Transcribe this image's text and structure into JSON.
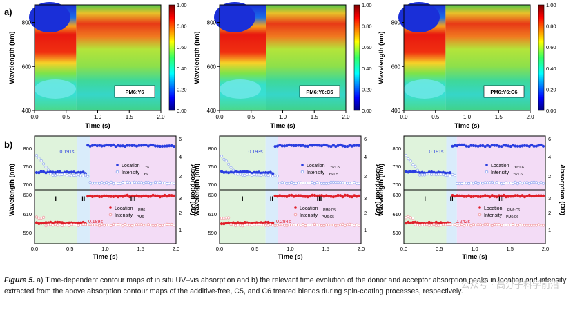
{
  "panel_labels": {
    "a": "a)",
    "b": "b)"
  },
  "colorbar": {
    "ticks": [
      "1.00",
      "0.80",
      "0.60",
      "0.40",
      "0.20",
      "0.00"
    ]
  },
  "contour_axes": {
    "xlabel": "Time (s)",
    "ylabel": "Wavelength (nm)",
    "xticks": [
      "0.0",
      "0.5",
      "1.0",
      "1.5",
      "2.0"
    ],
    "yticks": [
      "800",
      "600",
      "400"
    ]
  },
  "contour_labels": [
    "PM6:Y6",
    "PM6:Y6:C5",
    "PM6:Y6:C6"
  ],
  "kinetics_axes": {
    "xlabel": "Time (s)",
    "ylabel_left": "Wavelength (nm)",
    "ylabel_right": "Absorption (OD)",
    "xticks": [
      "0.0",
      "0.5",
      "1.0",
      "1.5",
      "2.0"
    ],
    "top_left_ticks": [
      "800",
      "750",
      "700"
    ],
    "top_right_ticks": [
      "6",
      "4",
      "2"
    ],
    "bot_left_ticks": [
      "630",
      "610",
      "590"
    ],
    "bot_right_ticks": [
      "3",
      "2",
      "1"
    ],
    "region_labels": [
      "I",
      "II",
      "III"
    ]
  },
  "kinetics_panels": [
    {
      "top_time": "0.191s",
      "bot_time": "0.189s",
      "top_loc_legend": "Location",
      "top_loc_sub": "Y6",
      "top_int_legend": "Intensity",
      "top_int_sub": "Y6",
      "bot_loc_legend": "Location",
      "bot_loc_sub": "PM6",
      "bot_int_legend": "Intensity",
      "bot_int_sub": "PM6"
    },
    {
      "top_time": "0.193s",
      "bot_time": "0.284s",
      "top_loc_legend": "Location",
      "top_loc_sub": "Y6:C5",
      "top_int_legend": "Intensity",
      "top_int_sub": "Y6:C5",
      "bot_loc_legend": "Location",
      "bot_loc_sub": "PM6:C5",
      "bot_int_legend": "Intensity",
      "bot_int_sub": "PM6:C5"
    },
    {
      "top_time": "0.191s",
      "bot_time": "0.242s",
      "top_loc_legend": "Location",
      "top_loc_sub": "Y6:C6",
      "top_int_legend": "Intensity",
      "top_int_sub": "Y6:C6",
      "bot_loc_legend": "Location",
      "bot_loc_sub": "PM6:C6",
      "bot_int_legend": "Intensity",
      "bot_int_sub": "PM6:C6"
    }
  ],
  "colors": {
    "location_top": "#2a3ee0",
    "intensity_top": "#9aaef0",
    "location_bot": "#e0202a",
    "intensity_bot": "#f2a0a6",
    "region1": "#dff3dc",
    "region2": "#d9ecfb",
    "region3": "#f3dcf6"
  },
  "caption": {
    "label": "Figure 5.",
    "text": " a) Time-dependent contour maps of in situ UV–vis absorption and b) the relevant time evolution of the donor and acceptor absorption peaks in location and intensity extracted from the above absorption contour maps of the additive-free, C5, and C6 treated blends during spin-coating processes, respectively."
  },
  "watermark": "公众号 · 高分子科学前沿"
}
